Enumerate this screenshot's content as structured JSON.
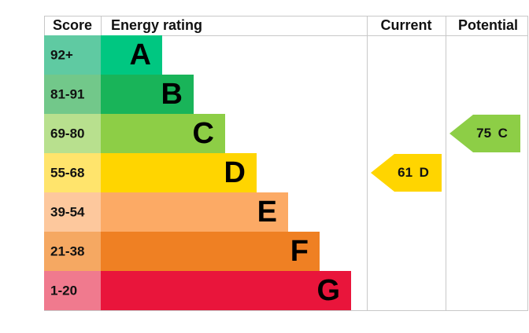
{
  "header": {
    "score": "Score",
    "rating": "Energy rating",
    "current": "Current",
    "potential": "Potential"
  },
  "bands": [
    {
      "score": "92+",
      "letter": "A",
      "color": "#00c781",
      "score_color": "#5fcaa2"
    },
    {
      "score": "81-91",
      "letter": "B",
      "color": "#19b459",
      "score_color": "#72c88a"
    },
    {
      "score": "69-80",
      "letter": "C",
      "color": "#8dce46",
      "score_color": "#b8e08e"
    },
    {
      "score": "55-68",
      "letter": "D",
      "color": "#ffd500",
      "score_color": "#ffe46c"
    },
    {
      "score": "39-54",
      "letter": "E",
      "color": "#fcaa65",
      "score_color": "#fdc89d"
    },
    {
      "score": "21-38",
      "letter": "F",
      "color": "#ef8023",
      "score_color": "#f5a862"
    },
    {
      "score": "1-20",
      "letter": "G",
      "color": "#e9153b",
      "score_color": "#f07a8e"
    }
  ],
  "current": {
    "value": 61,
    "letter": "D",
    "color": "#ffd500"
  },
  "potential": {
    "value": 75,
    "letter": "C",
    "color": "#8dce46"
  }
}
